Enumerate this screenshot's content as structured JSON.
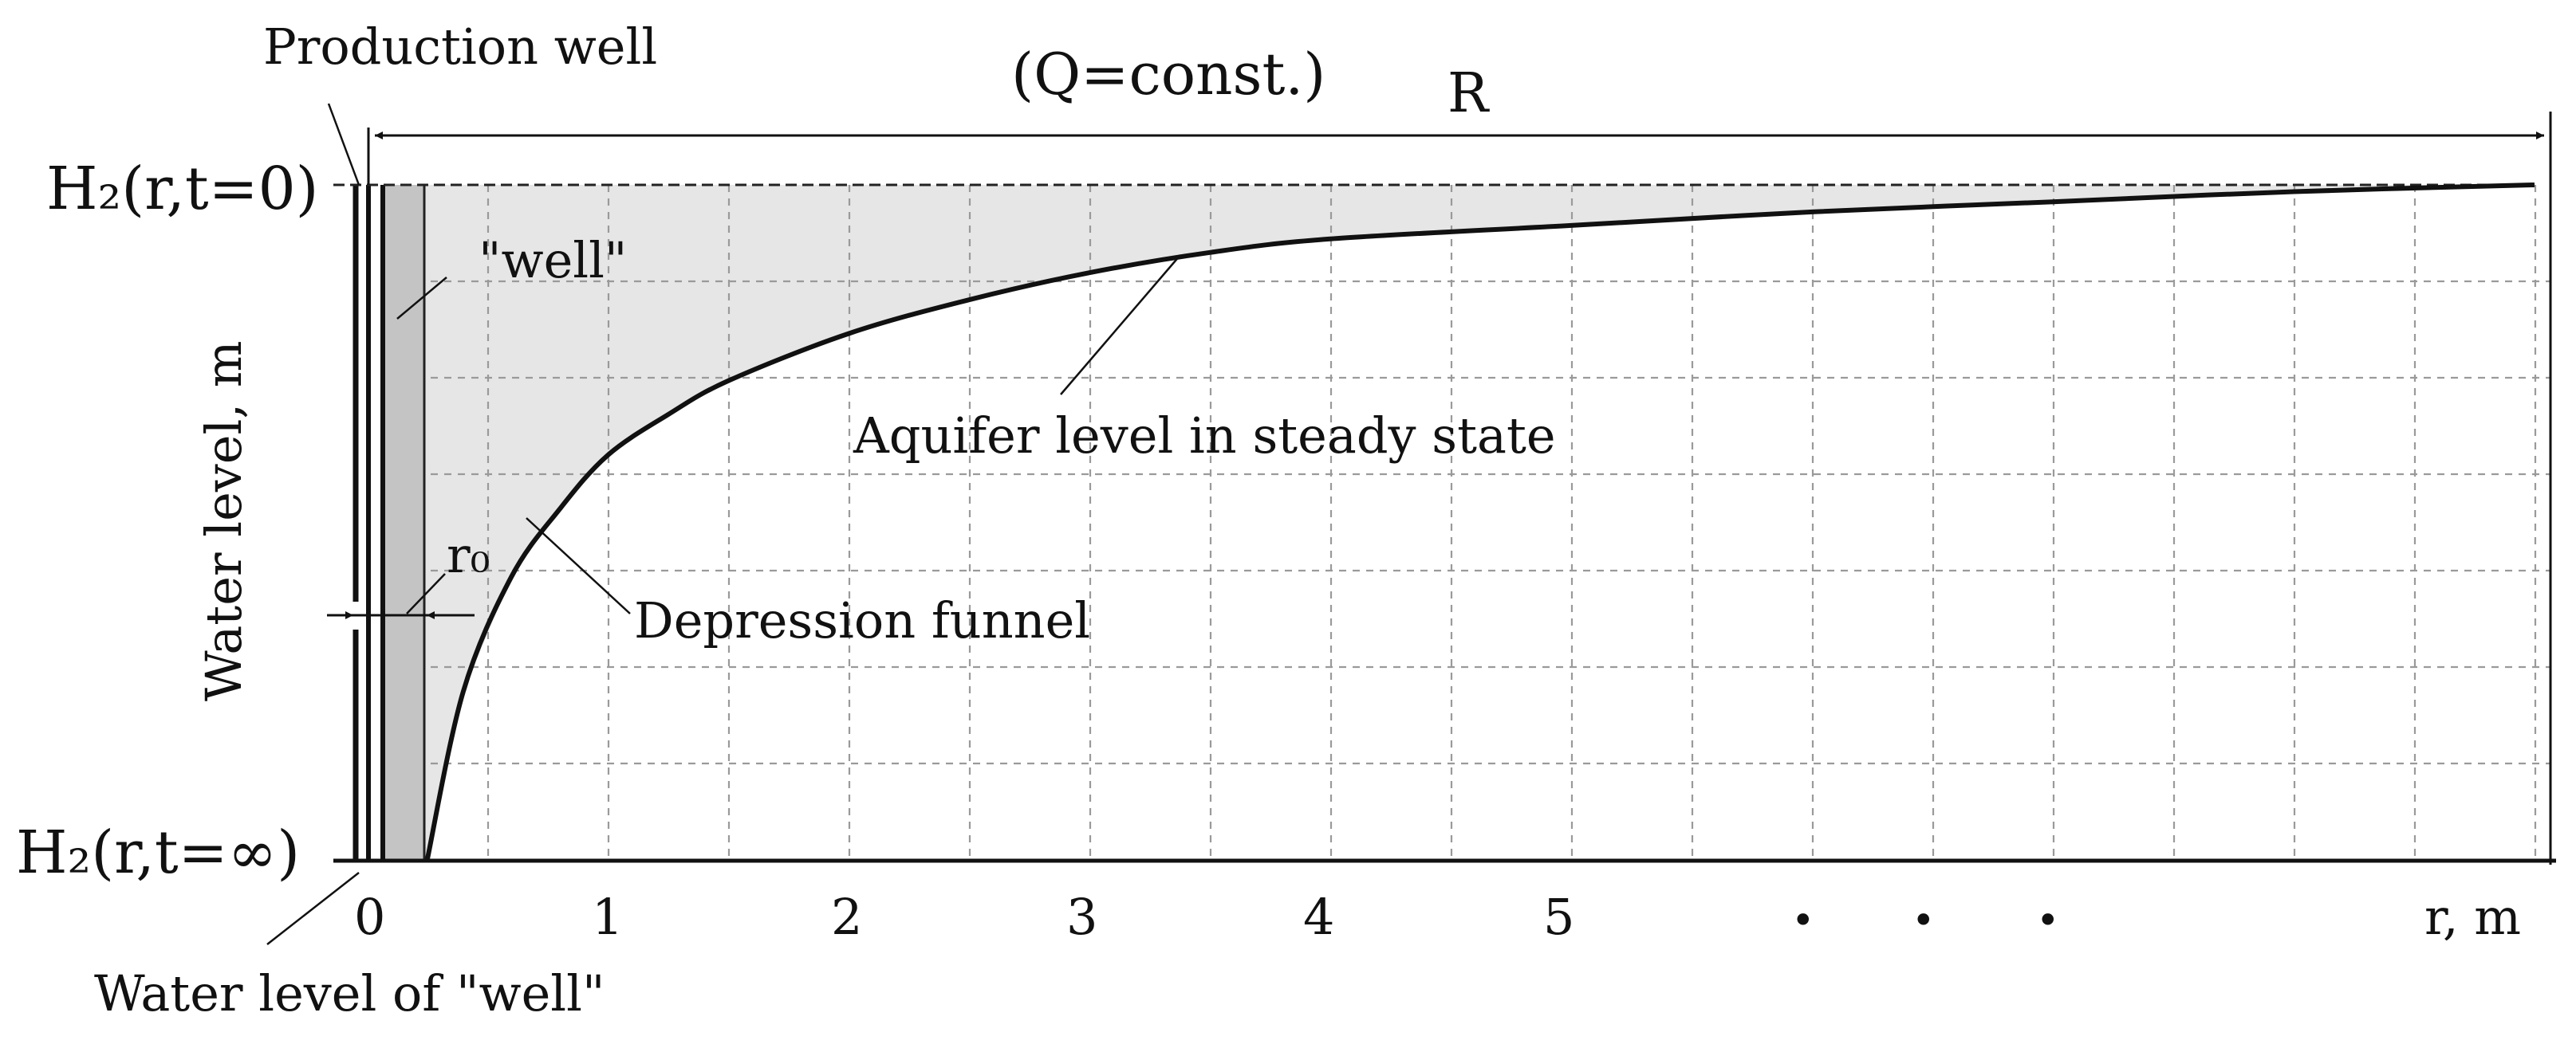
{
  "labels": {
    "production_well": "Production well",
    "q_const": "(Q=const.)",
    "radius_R": "R",
    "h2_t0": "H₂(r,t=0)",
    "h2_tinf": "H₂(r,t=∞)",
    "well_quoted": "\"well\"",
    "y_axis_label": "Water level, m",
    "r0": "r₀",
    "aquifer_steady": "Aquifer level in steady state",
    "depression_funnel": "Depression funnel",
    "water_level_well": "Water level of \"well\"",
    "x_unit": "r, m",
    "x_ticks": [
      "0",
      "1",
      "2",
      "3",
      "4",
      "5"
    ],
    "ellipsis": [
      "•",
      "•",
      "•"
    ]
  },
  "chart_data": {
    "type": "line",
    "title": "",
    "xlabel": "r, m",
    "ylabel": "Water level, m",
    "grid": true,
    "series": [
      {
        "x": [
          0.25,
          0.4,
          0.6,
          0.8,
          1.0,
          1.25,
          1.5,
          2.0,
          2.5,
          3.0,
          3.5,
          4.0,
          5.0,
          6.0,
          7.0,
          8.0,
          9.0
        ],
        "y": [
          0.0,
          0.25,
          0.42,
          0.52,
          0.6,
          0.66,
          0.71,
          0.78,
          0.83,
          0.87,
          0.9,
          0.92,
          0.94,
          0.96,
          0.975,
          0.99,
          1.0
        ]
      }
    ]
  }
}
